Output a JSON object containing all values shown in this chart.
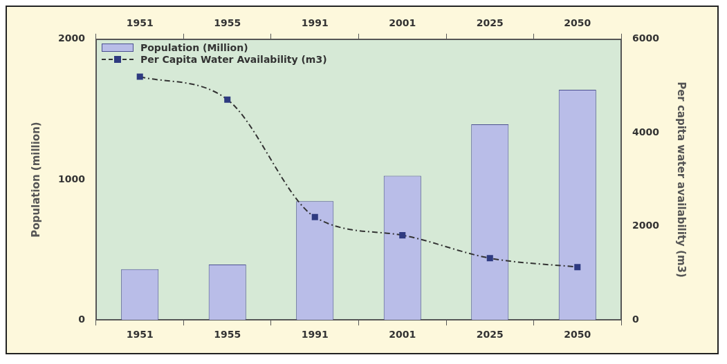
{
  "chart_data": {
    "type": "bar",
    "categories": [
      "1951",
      "1955",
      "1991",
      "2001",
      "2025",
      "2050"
    ],
    "series": [
      {
        "name": "Population (Million)",
        "type": "bar",
        "color": "#b9bde8",
        "values": [
          361,
          395,
          846,
          1027,
          1394,
          1640
        ]
      },
      {
        "name": "Per Capita Water Availability (m3)",
        "type": "line",
        "axis": "y2",
        "color": "#2e3a80",
        "values": [
          5200,
          4710,
          2200,
          1810,
          1320,
          1130
        ]
      }
    ],
    "ylabel": "Population (million)",
    "y2label": "Per capita water availability (m3)",
    "ylim": [
      0,
      2000
    ],
    "yticks": [
      0,
      1000,
      2000
    ],
    "y2lim": [
      0,
      6000
    ],
    "y2ticks": [
      0,
      2000,
      4000,
      6000
    ],
    "legend": "top left",
    "marker": "square",
    "line_style": "dashed",
    "grid": false
  }
}
